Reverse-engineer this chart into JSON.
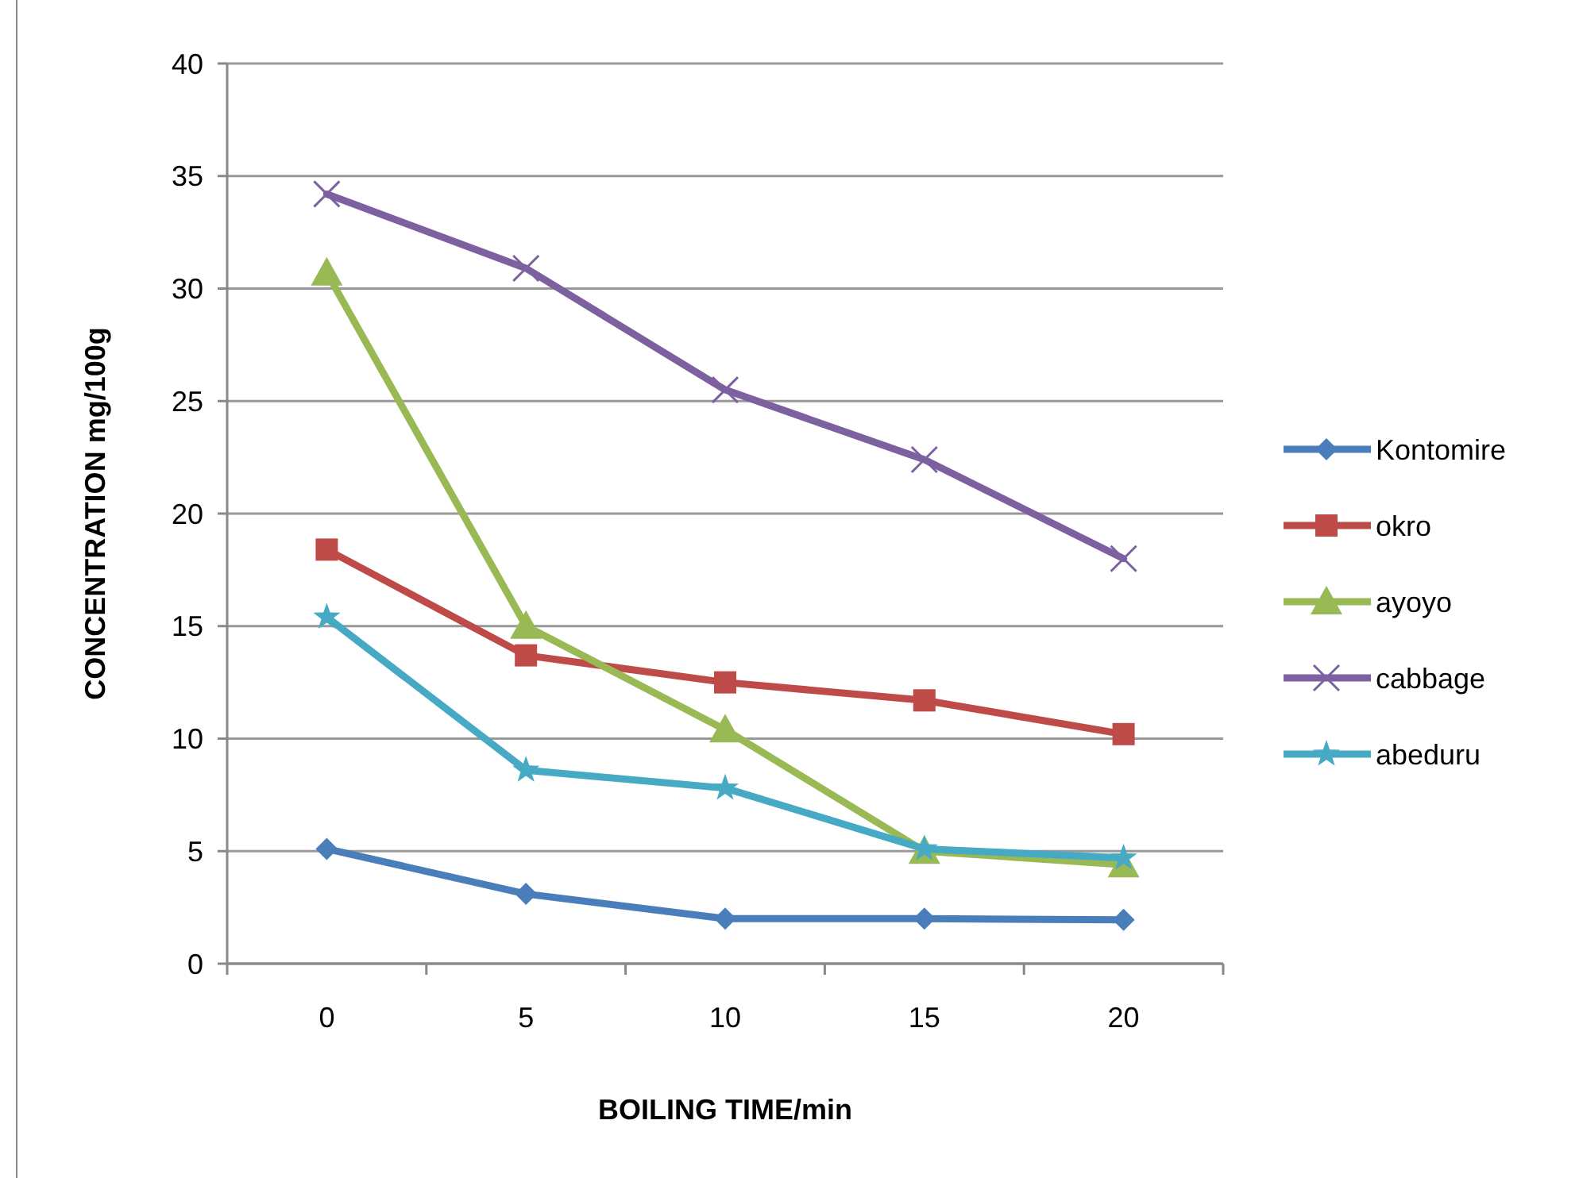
{
  "chart_data": {
    "type": "line",
    "xlabel": "BOILING TIME/min",
    "ylabel": "CONCENTRATION mg/100g",
    "categories": [
      "0",
      "5",
      "10",
      "15",
      "20"
    ],
    "ylim": [
      0,
      40
    ],
    "yticks": [
      0,
      5,
      10,
      15,
      20,
      25,
      30,
      35,
      40
    ],
    "grid": "y",
    "legend": "right",
    "line_style": "solid",
    "series": [
      {
        "name": "Kontomire",
        "color": "#4a7ebb",
        "marker": "diamond",
        "values": [
          5.1,
          3.1,
          2.0,
          2.0,
          1.95
        ]
      },
      {
        "name": "okro",
        "color": "#be4b48",
        "marker": "square",
        "values": [
          18.4,
          13.7,
          12.5,
          11.7,
          10.2
        ]
      },
      {
        "name": "ayoyo",
        "color": "#98b954",
        "marker": "triangle",
        "values": [
          30.7,
          15.0,
          10.4,
          5.0,
          4.4
        ]
      },
      {
        "name": "cabbage",
        "color": "#7d60a0",
        "marker": "cross",
        "values": [
          34.2,
          30.9,
          25.5,
          22.4,
          18.0
        ]
      },
      {
        "name": "abeduru",
        "color": "#46aac5",
        "marker": "star",
        "values": [
          15.4,
          8.6,
          7.8,
          5.1,
          4.7
        ]
      }
    ]
  }
}
